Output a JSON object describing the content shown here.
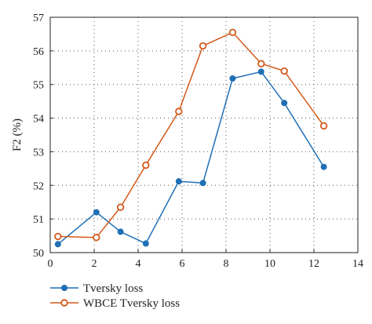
{
  "chart_data": {
    "type": "line",
    "ylabel": "F2 (%)",
    "xlabel": "",
    "xlim": [
      0,
      14
    ],
    "ylim": [
      50,
      57
    ],
    "xticks": [
      0,
      2,
      4,
      6,
      8,
      10,
      12,
      14
    ],
    "yticks": [
      50,
      51,
      52,
      53,
      54,
      55,
      56,
      57
    ],
    "grid": true,
    "legend_position": "bottom-left",
    "series": [
      {
        "name": "Tversky loss",
        "color": "#1f6fb5",
        "marker": "filled-circle",
        "x": [
          0.35,
          2.1,
          3.2,
          4.35,
          5.85,
          6.95,
          8.3,
          9.6,
          10.65,
          12.45
        ],
        "y": [
          50.25,
          51.2,
          50.62,
          50.27,
          52.12,
          52.07,
          55.18,
          55.38,
          54.45,
          52.55
        ]
      },
      {
        "name": "WBCE Tversky loss",
        "color": "#d45a1c",
        "marker": "open-circle",
        "x": [
          0.35,
          2.1,
          3.2,
          4.35,
          5.85,
          6.95,
          8.3,
          9.6,
          10.65,
          12.45
        ],
        "y": [
          50.48,
          50.45,
          51.35,
          52.6,
          54.2,
          56.15,
          56.55,
          55.62,
          55.4,
          53.77
        ]
      }
    ]
  }
}
